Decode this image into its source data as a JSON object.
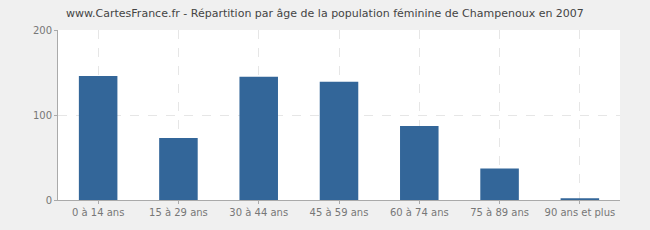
{
  "chart_data": {
    "type": "bar",
    "title": "www.CartesFrance.fr - Répartition par âge de la population féminine de Champenoux en 2007",
    "categories": [
      "0 à 14 ans",
      "15 à 29 ans",
      "30 à 44 ans",
      "45 à 59 ans",
      "60 à 74 ans",
      "75 à 89 ans",
      "90 ans et plus"
    ],
    "values": [
      146,
      73,
      145,
      139,
      87,
      37,
      2
    ],
    "color": "#336699",
    "ylim": [
      0,
      200
    ],
    "yticks": [
      0,
      100,
      200
    ],
    "grid": true
  }
}
